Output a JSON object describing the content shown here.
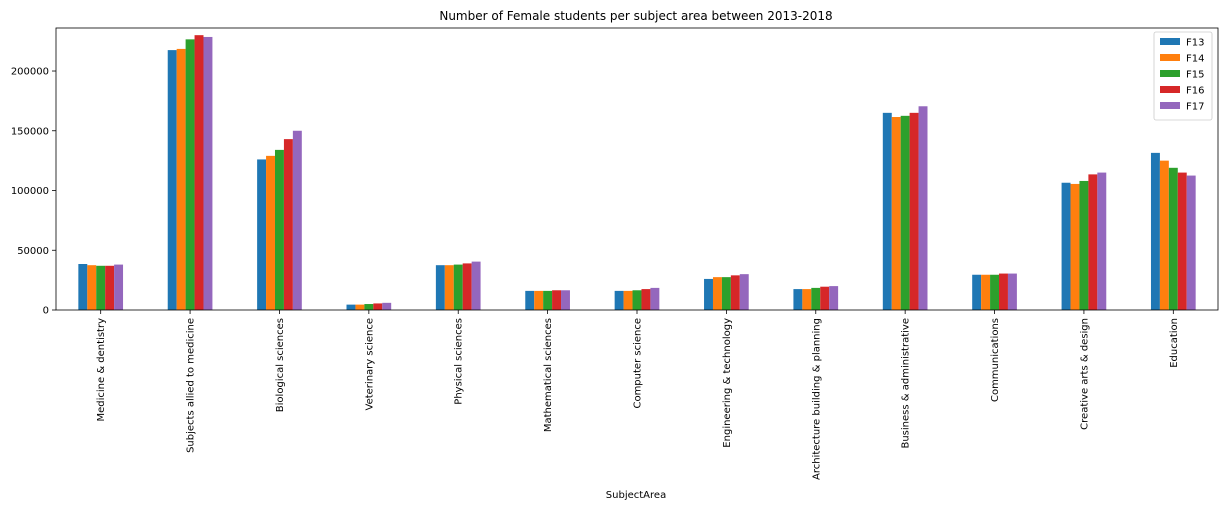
{
  "chart_data": {
    "type": "bar",
    "title": "Number of Female students per subject area between 2013-2018",
    "xlabel": "SubjectArea",
    "ylabel": "",
    "ylim": [
      0,
      236000
    ],
    "yticks": [
      0,
      50000,
      100000,
      150000,
      200000
    ],
    "yticklabels": [
      "0",
      "50000",
      "100000",
      "150000",
      "200000"
    ],
    "grid": false,
    "legend_position": "top-right",
    "categories": [
      "Medicine & dentistry",
      "Subjects allied to medicine",
      "Biological sciences",
      "Veterinary science",
      "Physical sciences",
      "Mathematical sciences",
      "Computer science",
      "Engineering & technology",
      "Architecture building & planning",
      "Business & administrative",
      "Communications",
      "Creative arts & design",
      "Education"
    ],
    "series": [
      {
        "name": "F13",
        "color": "#1f77b4",
        "values": [
          38500,
          217500,
          126000,
          4500,
          37500,
          16000,
          16000,
          26000,
          17500,
          165000,
          29500,
          106500,
          131500
        ]
      },
      {
        "name": "F14",
        "color": "#ff7f0e",
        "values": [
          37500,
          218500,
          129000,
          4500,
          37500,
          16000,
          16000,
          27500,
          17500,
          161500,
          29500,
          105500,
          125000
        ]
      },
      {
        "name": "F15",
        "color": "#2ca02c",
        "values": [
          37000,
          226500,
          134000,
          5000,
          38000,
          16000,
          16500,
          27500,
          18500,
          162500,
          29500,
          108000,
          119000
        ]
      },
      {
        "name": "F16",
        "color": "#d62728",
        "values": [
          37000,
          230000,
          143000,
          5500,
          39000,
          16500,
          17500,
          29000,
          19500,
          165000,
          30500,
          113500,
          115000
        ]
      },
      {
        "name": "F17",
        "color": "#9467bd",
        "values": [
          38000,
          228500,
          150000,
          6000,
          40500,
          16500,
          18500,
          30000,
          20000,
          170500,
          30500,
          115000,
          112500
        ]
      }
    ]
  }
}
